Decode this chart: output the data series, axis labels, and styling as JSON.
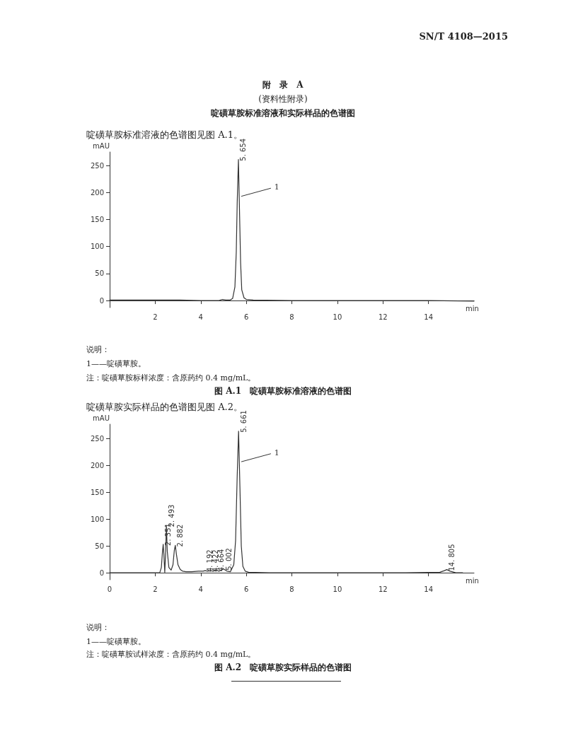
{
  "chart_data": [
    {
      "type": "line",
      "title": "图 A.1　啶磺草胺标准溶液的色谱图",
      "xlabel": "min",
      "ylabel": "mAU",
      "xlim": [
        0,
        16
      ],
      "xticks": [
        2,
        4,
        6,
        8,
        10,
        12,
        14
      ],
      "ylim": [
        -13,
        275
      ],
      "yticks": [
        0,
        50,
        100,
        150,
        200,
        250
      ],
      "grid": false,
      "marker": "none",
      "line_style": "solid",
      "annotations": [
        "SN/T 4108—2015",
        "附　录　A",
        "(资料性附录)",
        "啶磺草胺标准溶液和实际样品的色谱图",
        "啶磺草胺标准溶液的色谱图见图 A.1。",
        "说明：",
        "1——啶磺草胺。",
        "注：啶磺草胺标样浓度：含原药约 0.4 mg/mL。",
        {
          "text": "5. 654",
          "x": 5.654,
          "y": 261
        },
        {
          "text": "1",
          "x": 5.78,
          "y": 193
        }
      ],
      "series": [
        {
          "color": "#333333",
          "x": [
            0,
            1,
            2,
            3,
            4,
            4.8,
            4.95,
            5.1,
            5.3,
            5.4,
            5.5,
            5.56,
            5.6,
            5.654,
            5.7,
            5.75,
            5.8,
            5.9,
            6.0,
            6.3,
            8,
            10,
            12,
            14,
            16
          ],
          "values": [
            1,
            1,
            1,
            1,
            0,
            0,
            2,
            1,
            1,
            4,
            25,
            90,
            180,
            261,
            170,
            70,
            20,
            5,
            2,
            1,
            0,
            0,
            0,
            0,
            -1
          ]
        }
      ]
    },
    {
      "type": "line",
      "title": "图 A.2　啶磺草胺实际样品的色谱图",
      "xlabel": "min",
      "ylabel": "mAU",
      "xlim": [
        0,
        16
      ],
      "xticks": [
        0,
        2,
        4,
        6,
        8,
        10,
        12,
        14
      ],
      "ylim": [
        -13,
        277
      ],
      "yticks": [
        0,
        50,
        100,
        150,
        200,
        250
      ],
      "grid": false,
      "marker": "none",
      "line_style": "solid",
      "annotations": [
        "啶磺草胺实际样品的色谱图见图 A.2。",
        "说明：",
        "1——啶磺草胺。",
        "注：啶磺草胺试样浓度：含原药约 0.4 mg/mL。",
        {
          "text": "2. 351",
          "x": 2.351,
          "y": 53
        },
        {
          "text": "2. 493",
          "x": 2.493,
          "y": 88
        },
        {
          "text": "2. 882",
          "x": 2.882,
          "y": 51
        },
        {
          "text": "4. 192",
          "x": 4.192,
          "y": 4
        },
        {
          "text": "4. 422",
          "x": 4.422,
          "y": 4
        },
        {
          "text": "4. 664",
          "x": 4.664,
          "y": 5
        },
        {
          "text": "5. 002",
          "x": 5.002,
          "y": 7
        },
        {
          "text": "5. 661",
          "x": 5.661,
          "y": 264
        },
        {
          "text": "14. 805",
          "x": 14.805,
          "y": 6
        },
        {
          "text": "1",
          "x": 5.78,
          "y": 207
        }
      ],
      "series": [
        {
          "color": "#333333",
          "x": [
            0,
            1,
            2,
            2.2,
            2.27,
            2.32,
            2.351,
            2.38,
            2.42,
            2.45,
            2.493,
            2.53,
            2.6,
            2.7,
            2.78,
            2.84,
            2.882,
            2.93,
            3.0,
            3.1,
            3.2,
            3.35,
            3.6,
            3.9,
            4.1,
            4.192,
            4.3,
            4.422,
            4.55,
            4.664,
            4.8,
            5.002,
            5.15,
            5.3,
            5.45,
            5.53,
            5.6,
            5.661,
            5.72,
            5.78,
            5.85,
            5.95,
            6.1,
            7,
            10,
            13,
            14.5,
            14.7,
            14.805,
            14.95,
            15.2,
            15.5
          ],
          "values": [
            0,
            0,
            0,
            0,
            10,
            40,
            53,
            35,
            1,
            30,
            88,
            40,
            10,
            5,
            15,
            42,
            51,
            35,
            15,
            6,
            3,
            2,
            2,
            3,
            3,
            4,
            3,
            4,
            3,
            5,
            3,
            7,
            3,
            2,
            15,
            60,
            180,
            264,
            160,
            50,
            12,
            3,
            1,
            0,
            0,
            0,
            1,
            4,
            6,
            3,
            0,
            0
          ]
        }
      ]
    }
  ]
}
